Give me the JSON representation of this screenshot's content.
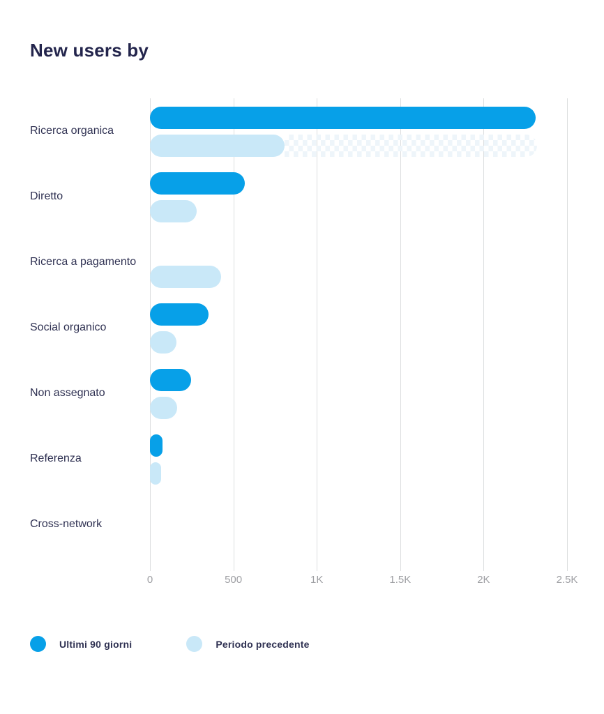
{
  "header": {
    "title": "New users by"
  },
  "colors": {
    "current": "#07a0e8",
    "previous": "#c9e8f8",
    "partial_pattern": "#eef5fa",
    "title": "#23254c",
    "category_label": "#2f3152",
    "axis_label": "#9e9fa3",
    "gridline": "#dcdedf"
  },
  "chart_data": {
    "type": "bar",
    "orientation": "horizontal",
    "title": "New users by",
    "categories": [
      "Ricerca organica",
      "Diretto",
      "Ricerca a pagamento",
      "Social organico",
      "Non assegnato",
      "Referenza",
      "Cross-network"
    ],
    "series": [
      {
        "name": "Ultimi 90 giorni",
        "color": "#07a0e8",
        "values": [
          2310,
          570,
          0,
          350,
          245,
          75,
          0
        ]
      },
      {
        "name": "Periodo precedente",
        "color": "#c9e8f8",
        "values": [
          805,
          280,
          425,
          160,
          165,
          65,
          0
        ]
      }
    ],
    "partial_data_pattern": {
      "category_index": 0,
      "series": "Periodo precedente",
      "from": 805,
      "to": 2320
    },
    "xlim": [
      0,
      2500
    ],
    "x_ticks": [
      {
        "value": 0,
        "label": "0"
      },
      {
        "value": 500,
        "label": "500"
      },
      {
        "value": 1000,
        "label": "1K"
      },
      {
        "value": 1500,
        "label": "1.5K"
      },
      {
        "value": 2000,
        "label": "2K"
      },
      {
        "value": 2500,
        "label": "2.5K"
      }
    ],
    "grid": true,
    "legend_position": "bottom-left",
    "legend": [
      {
        "label": "Ultimi 90 giorni",
        "color": "#07a0e8"
      },
      {
        "label": "Periodo precedente",
        "color": "#c9e8f8"
      }
    ]
  }
}
